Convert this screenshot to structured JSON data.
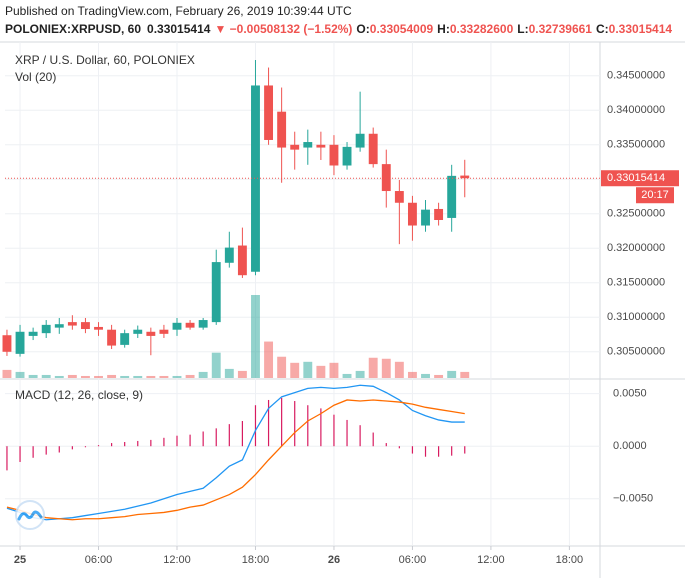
{
  "chart_data": [
    {
      "type": "candlestick",
      "header": "Published on TradingView.com, February 26, 2019 10:39:44 UTC",
      "quote": {
        "symbol": "POLONIEX:XRPUSD, 60",
        "last": "0.33015414",
        "change": "▼ −0.00508132 (−1.52%)",
        "fields": [
          {
            "label": "O:",
            "value": "0.33054009"
          },
          {
            "label": "H:",
            "value": "0.33282600"
          },
          {
            "label": "L:",
            "value": "0.32739661"
          },
          {
            "label": "C:",
            "value": "0.33015414"
          }
        ]
      },
      "title": "XRP / U.S. Dollar, 60, POLONIEX",
      "countdown": "20:17",
      "up_color": "#26a69a",
      "down_color": "#ef5350",
      "x": [
        -1,
        0,
        1,
        2,
        3,
        4,
        5,
        6,
        7,
        8,
        9,
        10,
        11,
        12,
        13,
        14,
        15,
        16,
        17,
        18,
        19,
        20,
        21,
        22,
        23,
        24,
        25,
        26,
        27,
        28,
        29,
        30,
        31,
        32,
        33,
        34
      ],
      "open": [
        0.3074,
        0.3047,
        0.3073,
        0.3077,
        0.3085,
        0.3093,
        0.3093,
        0.3086,
        0.3082,
        0.306,
        0.3076,
        0.3079,
        0.3082,
        0.3082,
        0.3092,
        0.3085,
        0.3093,
        0.3179,
        0.3204,
        0.3166,
        0.3436,
        0.3398,
        0.335,
        0.3346,
        0.335,
        0.335,
        0.332,
        0.3346,
        0.3366,
        0.3322,
        0.3283,
        0.3266,
        0.3233,
        0.3257,
        0.3244,
        0.33054009
      ],
      "high": [
        0.3082,
        0.3089,
        0.3085,
        0.3096,
        0.3099,
        0.3103,
        0.3099,
        0.3093,
        0.3089,
        0.3082,
        0.3088,
        0.3085,
        0.3089,
        0.3099,
        0.3096,
        0.3099,
        0.3198,
        0.3224,
        0.323,
        0.3473,
        0.3462,
        0.3433,
        0.3369,
        0.3372,
        0.3369,
        0.3364,
        0.3354,
        0.3427,
        0.3375,
        0.3343,
        0.3299,
        0.3276,
        0.327,
        0.3266,
        0.3321,
        0.332826
      ],
      "low": [
        0.3044,
        0.3043,
        0.3067,
        0.307,
        0.3076,
        0.3082,
        0.3077,
        0.3073,
        0.3054,
        0.3056,
        0.307,
        0.3045,
        0.307,
        0.3073,
        0.3082,
        0.3082,
        0.3089,
        0.3172,
        0.3157,
        0.3161,
        0.335,
        0.3295,
        0.3314,
        0.3321,
        0.3328,
        0.3306,
        0.3314,
        0.334,
        0.3317,
        0.3259,
        0.3206,
        0.3211,
        0.3224,
        0.3233,
        0.3224,
        0.32739661
      ],
      "close": [
        0.305,
        0.3079,
        0.3079,
        0.3089,
        0.309,
        0.3088,
        0.3083,
        0.3082,
        0.3059,
        0.3077,
        0.3082,
        0.3073,
        0.3076,
        0.3092,
        0.3085,
        0.3096,
        0.318,
        0.3201,
        0.3161,
        0.3436,
        0.3357,
        0.3346,
        0.3343,
        0.3354,
        0.3346,
        0.332,
        0.3347,
        0.3366,
        0.3322,
        0.3283,
        0.3266,
        0.3233,
        0.3256,
        0.3241,
        0.3305,
        0.33015414
      ],
      "volume": {
        "name": "Vol (20)",
        "values": [
          8,
          6,
          3,
          3,
          2,
          3,
          2,
          2,
          3,
          2,
          2,
          2,
          2,
          2,
          3,
          6,
          25,
          9,
          7,
          82,
          36,
          21,
          15,
          16,
          12,
          15,
          4,
          7,
          20,
          19,
          16,
          6,
          4,
          3,
          7,
          6
        ]
      },
      "xlim": [
        -1.15,
        44.34
      ],
      "ylim": [
        0.3012,
        0.3499
      ],
      "yticks": [
        {
          "value": 0.305,
          "label": "0.30500000"
        },
        {
          "value": 0.31,
          "label": "0.31000000"
        },
        {
          "value": 0.315,
          "label": "0.31500000"
        },
        {
          "value": 0.32,
          "label": "0.32000000"
        },
        {
          "value": 0.325,
          "label": "0.32500000"
        },
        {
          "value": 0.33,
          "label": "0.33000000"
        },
        {
          "value": 0.335,
          "label": "0.33500000"
        },
        {
          "value": 0.34,
          "label": "0.34000000"
        },
        {
          "value": 0.345,
          "label": "0.34500000"
        }
      ],
      "grid": true
    },
    {
      "type": "macd",
      "title": "MACD (12, 26, close, 9)",
      "histogram_color": "#d81b60",
      "macd_color": "#2196f3",
      "signal_color": "#ff6d00",
      "x": [
        -1,
        0,
        1,
        2,
        3,
        4,
        5,
        6,
        7,
        8,
        9,
        10,
        11,
        12,
        13,
        14,
        15,
        16,
        17,
        18,
        19,
        20,
        21,
        22,
        23,
        24,
        25,
        26,
        27,
        28,
        29,
        30,
        31,
        32,
        33,
        34
      ],
      "histogram": [
        -0.0023,
        -0.0015,
        -0.0011,
        -0.0008,
        -0.0006,
        -0.0003,
        -0.0001,
        0.0001,
        0.0003,
        0.0004,
        0.0005,
        0.0006,
        0.0008,
        0.001,
        0.0011,
        0.0014,
        0.0017,
        0.0021,
        0.0024,
        0.0039,
        0.0044,
        0.0046,
        0.0043,
        0.0039,
        0.0036,
        0.003,
        0.0025,
        0.002,
        0.0013,
        0.0003,
        -0.0002,
        -0.0007,
        -0.001,
        -0.001,
        -0.0009,
        -0.0007
      ],
      "macd": [
        -0.0059,
        -0.0063,
        -0.0068,
        -0.007,
        -0.0069,
        -0.0068,
        -0.0066,
        -0.0064,
        -0.0062,
        -0.006,
        -0.0057,
        -0.0054,
        -0.005,
        -0.0046,
        -0.0043,
        -0.004,
        -0.003,
        -0.0019,
        -0.0013,
        0.0015,
        0.0036,
        0.0047,
        0.0051,
        0.0055,
        0.0056,
        0.0055,
        0.0056,
        0.0058,
        0.0057,
        0.0051,
        0.0044,
        0.0034,
        0.0029,
        0.0025,
        0.0023,
        0.0023
      ],
      "signal": [
        -0.0058,
        -0.0061,
        -0.0065,
        -0.0068,
        -0.0069,
        -0.007,
        -0.0069,
        -0.0069,
        -0.0068,
        -0.0067,
        -0.0065,
        -0.0064,
        -0.0063,
        -0.0061,
        -0.0058,
        -0.0056,
        -0.0051,
        -0.0046,
        -0.0039,
        -0.0027,
        -0.0013,
        0,
        0.0013,
        0.0024,
        0.0031,
        0.0039,
        0.0044,
        0.0043,
        0.0044,
        0.0043,
        0.0042,
        0.004,
        0.0037,
        0.0035,
        0.0033,
        0.0031
      ],
      "xlim": [
        -1.15,
        44.34
      ],
      "ylim": [
        -0.0094,
        0.0063
      ],
      "yticks": [
        {
          "value": -0.005,
          "label": "−0.0050"
        },
        {
          "value": 0,
          "label": "0.0000"
        },
        {
          "value": 0.005,
          "label": "0.0050"
        }
      ],
      "xticks": [
        {
          "value": 0,
          "label": "25"
        },
        {
          "value": 6,
          "label": "06:00"
        },
        {
          "value": 12,
          "label": "12:00"
        },
        {
          "value": 18,
          "label": "18:00"
        },
        {
          "value": 24,
          "label": "26"
        },
        {
          "value": 30,
          "label": "06:00"
        },
        {
          "value": 36,
          "label": "12:00"
        },
        {
          "value": 42,
          "label": "18:00"
        }
      ],
      "grid": true
    }
  ]
}
